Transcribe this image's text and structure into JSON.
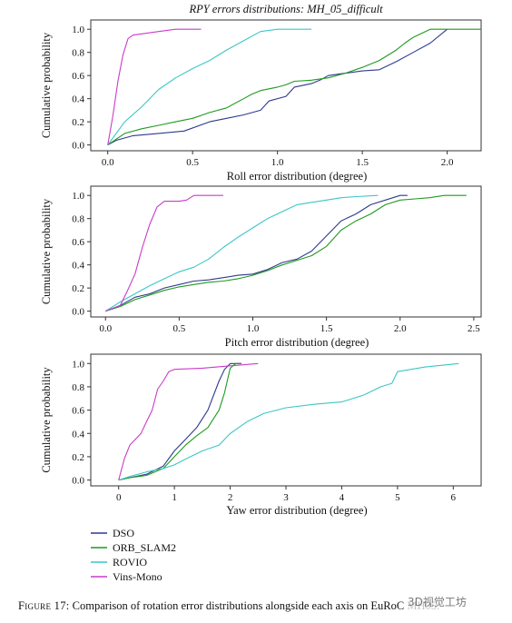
{
  "figure_title": "RPY errors distributions: MH_05_difficult",
  "caption": {
    "label": "Figure 17:",
    "text": "Comparison of rotation error distributions alongside each axis on EuRoC MH05."
  },
  "watermark": "3D视觉工坊",
  "legend": [
    {
      "name": "DSO",
      "color": "#2e3a8c"
    },
    {
      "name": "ORB_SLAM2",
      "color": "#1f9a1f"
    },
    {
      "name": "ROVIO",
      "color": "#3cc6c6"
    },
    {
      "name": "Vins-Mono",
      "color": "#c93cc9"
    }
  ],
  "chart_data": [
    {
      "type": "line",
      "title": "RPY errors distributions: MH_05_difficult",
      "xlabel": "Roll error distribution (degree)",
      "ylabel": "Cumulative probability",
      "xlim": [
        -0.1,
        2.2
      ],
      "ylim": [
        -0.05,
        1.08
      ],
      "xticks": [
        0.0,
        0.5,
        1.0,
        1.5,
        2.0
      ],
      "xtick_labels": [
        "0.0",
        "0.5",
        "1.0",
        "1.5",
        "2.0"
      ],
      "yticks": [
        0.0,
        0.2,
        0.4,
        0.6,
        0.8,
        1.0
      ],
      "ytick_labels": [
        "0.0",
        "0.2",
        "0.4",
        "0.6",
        "0.8",
        "1.0"
      ],
      "grid": false,
      "series": [
        {
          "name": "DSO",
          "x": [
            0,
            0.05,
            0.15,
            0.3,
            0.45,
            0.6,
            0.7,
            0.8,
            0.9,
            0.95,
            1.05,
            1.1,
            1.2,
            1.25,
            1.3,
            1.4,
            1.5,
            1.6,
            1.7,
            1.8,
            1.9,
            2.0
          ],
          "y": [
            0,
            0.04,
            0.08,
            0.1,
            0.12,
            0.2,
            0.23,
            0.26,
            0.3,
            0.38,
            0.42,
            0.5,
            0.53,
            0.56,
            0.6,
            0.62,
            0.64,
            0.65,
            0.72,
            0.8,
            0.88,
            1.0
          ]
        },
        {
          "name": "ORB_SLAM2",
          "x": [
            0,
            0.1,
            0.2,
            0.3,
            0.4,
            0.5,
            0.6,
            0.7,
            0.8,
            0.85,
            0.9,
            1.0,
            1.05,
            1.1,
            1.2,
            1.3,
            1.4,
            1.5,
            1.6,
            1.7,
            1.75,
            1.8,
            1.9,
            2.2
          ],
          "y": [
            0,
            0.1,
            0.14,
            0.17,
            0.2,
            0.23,
            0.28,
            0.32,
            0.4,
            0.44,
            0.47,
            0.5,
            0.52,
            0.55,
            0.56,
            0.58,
            0.62,
            0.67,
            0.73,
            0.82,
            0.88,
            0.93,
            1.0,
            1.0
          ]
        },
        {
          "name": "ROVIO",
          "x": [
            0,
            0.1,
            0.2,
            0.3,
            0.4,
            0.5,
            0.6,
            0.7,
            0.8,
            0.9,
            1.0,
            1.2
          ],
          "y": [
            0,
            0.2,
            0.33,
            0.48,
            0.58,
            0.66,
            0.73,
            0.82,
            0.9,
            0.98,
            1.0,
            1.0
          ]
        },
        {
          "name": "Vins-Mono",
          "x": [
            0,
            0.03,
            0.06,
            0.09,
            0.12,
            0.15,
            0.2,
            0.3,
            0.4,
            0.55
          ],
          "y": [
            0,
            0.25,
            0.55,
            0.78,
            0.92,
            0.95,
            0.96,
            0.98,
            1.0,
            1.0
          ]
        }
      ]
    },
    {
      "type": "line",
      "title": "",
      "xlabel": "Pitch error distribution (degree)",
      "ylabel": "Cumulative probability",
      "xlim": [
        -0.1,
        2.55
      ],
      "ylim": [
        -0.05,
        1.08
      ],
      "xticks": [
        0.0,
        0.5,
        1.0,
        1.5,
        2.0,
        2.5
      ],
      "xtick_labels": [
        "0.0",
        "0.5",
        "1.0",
        "1.5",
        "2.0",
        "2.5"
      ],
      "yticks": [
        0.0,
        0.2,
        0.4,
        0.6,
        0.8,
        1.0
      ],
      "ytick_labels": [
        "0.0",
        "0.2",
        "0.4",
        "0.6",
        "0.8",
        "1.0"
      ],
      "grid": false,
      "series": [
        {
          "name": "DSO",
          "x": [
            0,
            0.1,
            0.2,
            0.3,
            0.4,
            0.5,
            0.6,
            0.7,
            0.8,
            0.9,
            1.0,
            1.1,
            1.2,
            1.3,
            1.4,
            1.5,
            1.6,
            1.7,
            1.8,
            1.9,
            2.0,
            2.05
          ],
          "y": [
            0,
            0.05,
            0.12,
            0.15,
            0.2,
            0.23,
            0.26,
            0.27,
            0.29,
            0.31,
            0.32,
            0.36,
            0.42,
            0.45,
            0.52,
            0.65,
            0.78,
            0.84,
            0.92,
            0.96,
            1.0,
            1.0
          ]
        },
        {
          "name": "ORB_SLAM2",
          "x": [
            0,
            0.1,
            0.2,
            0.3,
            0.4,
            0.5,
            0.6,
            0.7,
            0.8,
            0.9,
            1.0,
            1.1,
            1.2,
            1.3,
            1.4,
            1.5,
            1.6,
            1.7,
            1.8,
            1.9,
            2.0,
            2.1,
            2.2,
            2.3,
            2.45
          ],
          "y": [
            0,
            0.04,
            0.1,
            0.14,
            0.18,
            0.21,
            0.23,
            0.25,
            0.26,
            0.28,
            0.31,
            0.35,
            0.4,
            0.44,
            0.48,
            0.56,
            0.7,
            0.78,
            0.84,
            0.92,
            0.96,
            0.97,
            0.98,
            1.0,
            1.0
          ]
        },
        {
          "name": "ROVIO",
          "x": [
            0,
            0.1,
            0.2,
            0.3,
            0.4,
            0.5,
            0.6,
            0.7,
            0.8,
            0.9,
            1.0,
            1.1,
            1.2,
            1.3,
            1.4,
            1.5,
            1.6,
            1.7,
            1.85
          ],
          "y": [
            0,
            0.08,
            0.15,
            0.22,
            0.28,
            0.34,
            0.38,
            0.45,
            0.55,
            0.64,
            0.72,
            0.8,
            0.86,
            0.92,
            0.94,
            0.96,
            0.98,
            0.99,
            1.0
          ]
        },
        {
          "name": "Vins-Mono",
          "x": [
            0,
            0.1,
            0.15,
            0.2,
            0.25,
            0.3,
            0.35,
            0.4,
            0.5,
            0.55,
            0.6,
            0.8
          ],
          "y": [
            0,
            0.05,
            0.18,
            0.32,
            0.55,
            0.75,
            0.9,
            0.95,
            0.95,
            0.96,
            1.0,
            1.0
          ]
        }
      ]
    },
    {
      "type": "line",
      "title": "",
      "xlabel": "Yaw error distribution (degree)",
      "ylabel": "Cumulative probability",
      "xlim": [
        -0.5,
        6.5
      ],
      "ylim": [
        -0.05,
        1.08
      ],
      "xticks": [
        0,
        1,
        2,
        3,
        4,
        5,
        6
      ],
      "xtick_labels": [
        "0",
        "1",
        "2",
        "3",
        "4",
        "5",
        "6"
      ],
      "yticks": [
        0.0,
        0.2,
        0.4,
        0.6,
        0.8,
        1.0
      ],
      "ytick_labels": [
        "0.0",
        "0.2",
        "0.4",
        "0.6",
        "0.8",
        "1.0"
      ],
      "grid": false,
      "series": [
        {
          "name": "DSO",
          "x": [
            0,
            0.2,
            0.5,
            0.8,
            1.0,
            1.2,
            1.4,
            1.6,
            1.8,
            1.9,
            2.0,
            2.1,
            2.2
          ],
          "y": [
            0,
            0.02,
            0.05,
            0.12,
            0.25,
            0.35,
            0.45,
            0.6,
            0.85,
            0.95,
            1.0,
            1.0,
            1.0
          ]
        },
        {
          "name": "ORB_SLAM2",
          "x": [
            0,
            0.2,
            0.5,
            0.8,
            1.0,
            1.2,
            1.4,
            1.6,
            1.8,
            1.9,
            2.0,
            2.1,
            2.2
          ],
          "y": [
            0,
            0.02,
            0.04,
            0.1,
            0.2,
            0.3,
            0.38,
            0.45,
            0.6,
            0.75,
            0.96,
            1.0,
            1.0
          ]
        },
        {
          "name": "ROVIO",
          "x": [
            0,
            0.2,
            0.5,
            0.8,
            1.0,
            1.2,
            1.5,
            1.8,
            2.0,
            2.3,
            2.6,
            3.0,
            3.5,
            4.0,
            4.4,
            4.7,
            4.9,
            5.0,
            5.5,
            6.1
          ],
          "y": [
            0,
            0.03,
            0.07,
            0.1,
            0.13,
            0.18,
            0.25,
            0.3,
            0.4,
            0.5,
            0.57,
            0.62,
            0.65,
            0.67,
            0.73,
            0.8,
            0.83,
            0.93,
            0.97,
            1.0
          ]
        },
        {
          "name": "Vins-Mono",
          "x": [
            0,
            0.1,
            0.2,
            0.3,
            0.4,
            0.5,
            0.6,
            0.7,
            0.8,
            0.9,
            1.0,
            1.5,
            2.0,
            2.5
          ],
          "y": [
            0,
            0.18,
            0.3,
            0.35,
            0.4,
            0.5,
            0.6,
            0.78,
            0.85,
            0.93,
            0.95,
            0.96,
            0.98,
            1.0
          ]
        }
      ]
    }
  ]
}
